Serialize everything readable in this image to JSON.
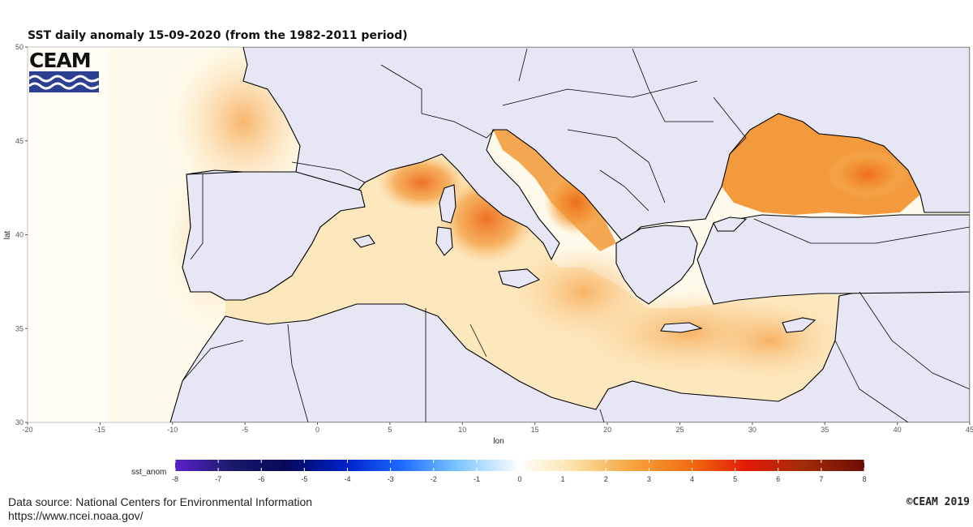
{
  "title": "SST daily anomaly 15-09-2020 (from the 1982-2011 period)",
  "logo": {
    "text": "CEAM",
    "stripe_color": "#2d3f8f"
  },
  "axes": {
    "xlabel": "lon",
    "ylabel": "lat",
    "x_ticks": [
      "-20",
      "-15",
      "-10",
      "-5",
      "0",
      "5",
      "10",
      "15",
      "20",
      "25",
      "30",
      "35",
      "40",
      "45"
    ],
    "y_ticks": [
      "50",
      "45",
      "40",
      "35",
      "30"
    ]
  },
  "colorbar": {
    "label": "sst_anom",
    "ticks": [
      "-8",
      "-7",
      "-6",
      "-5",
      "-4",
      "-3",
      "-2",
      "-1",
      "0",
      "1",
      "2",
      "3",
      "4",
      "5",
      "6",
      "7",
      "8"
    ],
    "range": [
      -8,
      8
    ]
  },
  "colors": {
    "land": "#e6e6f5",
    "sea_neutral": "#fffbec",
    "sea_warm": "#f7b35e",
    "sea_hot": "#ef7a20"
  },
  "source": {
    "line1": "Data source: National Centers for Environmental Information",
    "line2": "https://www.ncei.noaa.gov/"
  },
  "copyright": "©CEAM 2019",
  "chart_data": {
    "type": "heatmap",
    "title": "SST daily anomaly 15-09-2020 (from the 1982-2011 period)",
    "xlabel": "lon",
    "ylabel": "lat",
    "xlim": [
      -20,
      45
    ],
    "ylim": [
      30,
      50
    ],
    "colorbar": {
      "label": "sst_anom",
      "min": -8,
      "max": 8
    }
  }
}
